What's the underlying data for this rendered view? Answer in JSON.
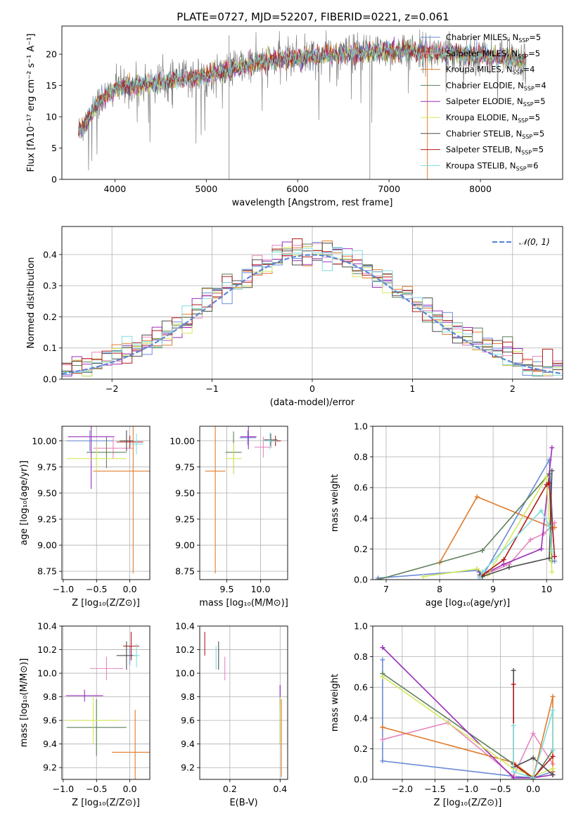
{
  "figure_title": "PLATE=0727, MJD=52207, FIBERID=0221, z=0.061",
  "palette": {
    "ChabrierMILES": "#6b8bd6",
    "SalpeterMILES": "#e687bf",
    "KroupaMILES": "#e07b2c",
    "ChabrierELODIE": "#5e7f5a",
    "SalpeterELODIE": "#9b2fb8",
    "KroupaELODIE": "#d3e85a",
    "ChabrierSTELIB": "#4f4f4f",
    "SalpeterSTELIB": "#b01c1c",
    "KroupaSTELIB": "#82dcdc",
    "data": "#808080",
    "gaussian": "#5b87d6"
  },
  "chart_data": [
    {
      "id": "spectrum",
      "type": "line",
      "title": "PLATE=0727, MJD=52207, FIBERID=0221, z=0.061",
      "xlabel": "wavelength [Angstrom, rest frame]",
      "ylabel": "Flux [fλ10⁻¹⁷ erg cm⁻² s⁻¹ A⁻¹]",
      "xlim": [
        3420,
        8900
      ],
      "ylim": [
        0,
        24.5
      ],
      "xticks": [
        4000,
        5000,
        6000,
        7000,
        8000
      ],
      "yticks": [
        0,
        5,
        10,
        15,
        20
      ],
      "grid": false,
      "legend_position": "top-right",
      "x_range": [
        3600,
        8500
      ],
      "continuum": [
        [
          3600,
          7.5
        ],
        [
          3700,
          9.5
        ],
        [
          3800,
          12
        ],
        [
          4000,
          14.5
        ],
        [
          4200,
          15
        ],
        [
          4500,
          15.5
        ],
        [
          5000,
          16.5
        ],
        [
          5500,
          18.5
        ],
        [
          6000,
          19.5
        ],
        [
          6500,
          20
        ],
        [
          7000,
          20.5
        ],
        [
          7500,
          20.3
        ],
        [
          8000,
          19.8
        ],
        [
          8500,
          19
        ]
      ],
      "series": [
        {
          "name": "Chabrier MILES, N_SSP=5",
          "label_main": "Chabrier MILES, N",
          "label_sub": "SSP",
          "label_tail": "=5",
          "color_key": "ChabrierMILES"
        },
        {
          "name": "Salpeter MILES, N_SSP=5",
          "label_main": "Salpeter MILES, N",
          "label_sub": "SSP",
          "label_tail": "=5",
          "color_key": "SalpeterMILES"
        },
        {
          "name": "Kroupa MILES, N_SSP=4",
          "label_main": "Kroupa MILES, N",
          "label_sub": "SSP",
          "label_tail": "=4",
          "color_key": "KroupaMILES"
        },
        {
          "name": "Chabrier ELODIE, N_SSP=4",
          "label_main": "Chabrier ELODIE, N",
          "label_sub": "SSP",
          "label_tail": "=4",
          "color_key": "ChabrierELODIE"
        },
        {
          "name": "Salpeter ELODIE, N_SSP=5",
          "label_main": "Salpeter ELODIE, N",
          "label_sub": "SSP",
          "label_tail": "=5",
          "color_key": "SalpeterELODIE"
        },
        {
          "name": "Kroupa ELODIE, N_SSP=5",
          "label_main": "Kroupa ELODIE, N",
          "label_sub": "SSP",
          "label_tail": "=5",
          "color_key": "KroupaELODIE"
        },
        {
          "name": "Chabrier STELIB, N_SSP=5",
          "label_main": "Chabrier STELIB, N",
          "label_sub": "SSP",
          "label_tail": "=5",
          "color_key": "ChabrierSTELIB"
        },
        {
          "name": "Salpeter STELIB, N_SSP=5",
          "label_main": "Salpeter STELIB, N",
          "label_sub": "SSP",
          "label_tail": "=5",
          "color_key": "SalpeterSTELIB"
        },
        {
          "name": "Kroupa STELIB, N_SSP=6",
          "label_main": "Kroupa STELIB, N",
          "label_sub": "SSP",
          "label_tail": "=6",
          "color_key": "KroupaSTELIB"
        }
      ]
    },
    {
      "id": "residuals",
      "type": "line",
      "xlabel": "(data-model)/error",
      "ylabel": "Normed distribution",
      "xlim": [
        -2.5,
        2.5
      ],
      "ylim": [
        0,
        0.49
      ],
      "xticks": [
        -2,
        -1,
        0,
        1,
        2
      ],
      "yticks": [
        0.0,
        0.1,
        0.2,
        0.3,
        0.4
      ],
      "grid": true,
      "legend_position": "top-right",
      "gaussian_label": "𝒩(0, 1)",
      "bin_width": 0.1
    },
    {
      "id": "age_vs_Z",
      "type": "scatter",
      "xlabel": "Z [log₁₀(Z/Z⊙)]",
      "ylabel": "age  [log₁₀(age/yr)]",
      "xlim": [
        -1.02,
        0.3
      ],
      "ylim": [
        8.67,
        10.14
      ],
      "xticks": [
        -1.0,
        -0.5,
        0.0
      ],
      "yticks": [
        8.75,
        9.0,
        9.25,
        9.5,
        9.75,
        10.0
      ],
      "grid": true,
      "points": [
        {
          "key": "ChabrierMILES",
          "x": -0.6,
          "xerr": 0.35,
          "y": 10.0,
          "yerr": 0.1
        },
        {
          "key": "SalpeterMILES",
          "x": -0.25,
          "xerr": 0.3,
          "y": 9.93,
          "yerr": 0.1
        },
        {
          "key": "KroupaMILES",
          "x": 0.05,
          "xerr": 0.6,
          "y": 9.71,
          "yerr": 0.98
        },
        {
          "key": "ChabrierELODIE",
          "x": -0.35,
          "xerr": 0.3,
          "y": 9.89,
          "yerr": 0.15
        },
        {
          "key": "SalpeterELODIE",
          "x": -0.58,
          "xerr": 0.35,
          "y": 10.04,
          "yerr": 0.5
        },
        {
          "key": "KroupaELODIE",
          "x": -0.5,
          "xerr": 0.45,
          "y": 9.83,
          "yerr": 0.12
        },
        {
          "key": "ChabrierSTELIB",
          "x": -0.05,
          "xerr": 0.1,
          "y": 10.0,
          "yerr": 0.1
        },
        {
          "key": "SalpeterSTELIB",
          "x": 0.0,
          "xerr": 0.2,
          "y": 9.99,
          "yerr": 0.06
        },
        {
          "key": "KroupaSTELIB",
          "x": 0.1,
          "xerr": 0.1,
          "y": 9.97,
          "yerr": 0.1
        }
      ]
    },
    {
      "id": "age_vs_mass",
      "type": "scatter",
      "xlabel": "mass [log₁₀(M/M⊙)]",
      "xlim": [
        9.1,
        10.4
      ],
      "ylim": [
        8.67,
        10.14
      ],
      "xticks": [
        9.5,
        10.0
      ],
      "yticks": [
        8.75,
        9.0,
        9.25,
        9.5,
        9.75,
        10.0
      ],
      "grid": true,
      "points": [
        {
          "key": "ChabrierMILES",
          "x": 9.81,
          "xerr": 0.12,
          "y": 10.03,
          "yerr": 0.07
        },
        {
          "key": "SalpeterMILES",
          "x": 10.04,
          "xerr": 0.13,
          "y": 9.94,
          "yerr": 0.1
        },
        {
          "key": "KroupaMILES",
          "x": 9.33,
          "xerr": 0.15,
          "y": 9.71,
          "yerr": 0.98
        },
        {
          "key": "ChabrierELODIE",
          "x": 9.6,
          "xerr": 0.12,
          "y": 9.89,
          "yerr": 0.2
        },
        {
          "key": "SalpeterELODIE",
          "x": 9.82,
          "xerr": 0.12,
          "y": 10.04,
          "yerr": 0.12
        },
        {
          "key": "KroupaELODIE",
          "x": 9.6,
          "xerr": 0.12,
          "y": 9.83,
          "yerr": 0.15
        },
        {
          "key": "ChabrierSTELIB",
          "x": 10.15,
          "xerr": 0.1,
          "y": 10.01,
          "yerr": 0.06
        },
        {
          "key": "SalpeterSTELIB",
          "x": 10.22,
          "xerr": 0.08,
          "y": 10.0,
          "yerr": 0.05
        },
        {
          "key": "KroupaSTELIB",
          "x": 10.14,
          "xerr": 0.1,
          "y": 10.0,
          "yerr": 0.08
        }
      ]
    },
    {
      "id": "weight_vs_age",
      "type": "line",
      "xlabel": "age  [log₁₀(age/yr)]",
      "ylabel": "mass weight",
      "xlim": [
        6.75,
        10.3
      ],
      "ylim": [
        0,
        1
      ],
      "xticks": [
        7,
        8,
        9,
        10
      ],
      "yticks": [
        0.0,
        0.2,
        0.4,
        0.6,
        0.8,
        1.0
      ],
      "grid": true,
      "series": [
        {
          "key": "ChabrierMILES",
          "x": [
            6.85,
            8.7,
            8.8,
            10.05,
            10.15
          ],
          "y": [
            0.01,
            0.06,
            0.02,
            0.78,
            0.12
          ]
        },
        {
          "key": "SalpeterMILES",
          "x": [
            8.75,
            9.3,
            9.7,
            9.95,
            10.15
          ],
          "y": [
            0.02,
            0.1,
            0.26,
            0.3,
            0.37
          ]
        },
        {
          "key": "KroupaMILES",
          "x": [
            8.0,
            8.7,
            10.1,
            10.15
          ],
          "y": [
            0.11,
            0.54,
            0.34,
            0.34
          ]
        },
        {
          "key": "ChabrierELODIE",
          "x": [
            6.85,
            8.8,
            10.05,
            10.1
          ],
          "y": [
            0.0,
            0.19,
            0.69,
            0.12
          ]
        },
        {
          "key": "SalpeterELODIE",
          "x": [
            8.7,
            8.8,
            9.2,
            9.9,
            10.1
          ],
          "y": [
            0.07,
            0.03,
            0.1,
            0.2,
            0.86
          ]
        },
        {
          "key": "KroupaELODIE",
          "x": [
            7.7,
            8.7,
            8.9,
            10.0,
            10.1
          ],
          "y": [
            0.02,
            0.07,
            0.03,
            0.67,
            0.05
          ]
        },
        {
          "key": "ChabrierSTELIB",
          "x": [
            8.75,
            8.8,
            9.3,
            10.05,
            10.1
          ],
          "y": [
            0.03,
            0.02,
            0.08,
            0.14,
            0.71
          ]
        },
        {
          "key": "SalpeterSTELIB",
          "x": [
            8.8,
            9.2,
            10.0,
            10.05,
            10.15
          ],
          "y": [
            0.03,
            0.13,
            0.62,
            0.63,
            0.15
          ]
        },
        {
          "key": "KroupaSTELIB",
          "x": [
            8.75,
            8.8,
            9.9,
            10.05,
            10.1
          ],
          "y": [
            0.01,
            0.05,
            0.45,
            0.35,
            0.19
          ]
        }
      ]
    },
    {
      "id": "mass_vs_Z",
      "type": "scatter",
      "xlabel": "Z [log₁₀(Z/Z⊙)]",
      "ylabel": "mass [log₁₀(M/M⊙)]",
      "xlim": [
        -1.02,
        0.3
      ],
      "ylim": [
        9.1,
        10.4
      ],
      "xticks": [
        -1.0,
        -0.5,
        0.0
      ],
      "yticks": [
        9.2,
        9.4,
        9.6,
        9.8,
        10.0,
        10.2,
        10.4
      ],
      "grid": true,
      "points": [
        {
          "key": "ChabrierMILES",
          "x": 0.0,
          "xerr": 0.12,
          "y": 10.15,
          "yerr": 0.08
        },
        {
          "key": "SalpeterMILES",
          "x": -0.35,
          "xerr": 0.25,
          "y": 10.04,
          "yerr": 0.1
        },
        {
          "key": "KroupaMILES",
          "x": 0.08,
          "xerr": 0.35,
          "y": 9.33,
          "yerr": 0.36
        },
        {
          "key": "ChabrierELODIE",
          "x": -0.5,
          "xerr": 0.45,
          "y": 9.54,
          "yerr": 0.24
        },
        {
          "key": "SalpeterELODIE",
          "x": -0.68,
          "xerr": 0.28,
          "y": 9.81,
          "yerr": 0.05
        },
        {
          "key": "KroupaELODIE",
          "x": -0.55,
          "xerr": 0.4,
          "y": 9.6,
          "yerr": 0.2
        },
        {
          "key": "ChabrierSTELIB",
          "x": -0.05,
          "xerr": 0.15,
          "y": 10.15,
          "yerr": 0.12
        },
        {
          "key": "SalpeterSTELIB",
          "x": 0.02,
          "xerr": 0.12,
          "y": 10.23,
          "yerr": 0.12
        },
        {
          "key": "KroupaSTELIB",
          "x": 0.1,
          "xerr": 0.05,
          "y": 10.15,
          "yerr": 0.1
        }
      ]
    },
    {
      "id": "mass_vs_EBV",
      "type": "scatter",
      "xlabel": "E(B-V)",
      "xlim": [
        0.08,
        0.43
      ],
      "ylim": [
        9.1,
        10.4
      ],
      "xticks": [
        0.2,
        0.4
      ],
      "yticks": [
        9.2,
        9.4,
        9.6,
        9.8,
        10.0,
        10.2,
        10.4
      ],
      "grid": true,
      "points": [
        {
          "key": "ChabrierMILES",
          "x": 0.4,
          "y": 9.8,
          "yerr": 0.1
        },
        {
          "key": "SalpeterMILES",
          "x": 0.18,
          "y": 10.04,
          "yerr": 0.1
        },
        {
          "key": "KroupaMILES",
          "x": 0.405,
          "y": 9.45,
          "yerr": 0.33
        },
        {
          "key": "ChabrierELODIE",
          "x": 0.4,
          "y": 9.6,
          "yerr": 0.2
        },
        {
          "key": "SalpeterELODIE",
          "x": 0.4,
          "y": 9.82,
          "yerr": 0.08
        },
        {
          "key": "KroupaELODIE",
          "x": 0.4,
          "y": 9.6,
          "yerr": 0.2
        },
        {
          "key": "ChabrierSTELIB",
          "x": 0.155,
          "y": 10.15,
          "yerr": 0.12
        },
        {
          "key": "SalpeterSTELIB",
          "x": 0.1,
          "y": 10.25,
          "yerr": 0.1
        },
        {
          "key": "KroupaSTELIB",
          "x": 0.145,
          "y": 10.13,
          "yerr": 0.1
        }
      ]
    },
    {
      "id": "weight_vs_Z",
      "type": "line",
      "xlabel": "Z [log₁₀(Z/Z⊙)]",
      "ylabel": "mass weight",
      "xlim": [
        -2.45,
        0.45
      ],
      "ylim": [
        0,
        1
      ],
      "xticks": [
        -2.0,
        -1.5,
        -1.0,
        -0.5,
        0.0
      ],
      "yticks": [
        0.0,
        0.2,
        0.4,
        0.6,
        0.8,
        1.0
      ],
      "grid": true,
      "series": [
        {
          "key": "ChabrierMILES",
          "x": [
            -2.3,
            -2.3,
            -0.3,
            0.0,
            0.3
          ],
          "y": [
            0.78,
            0.12,
            0.02,
            0.01,
            0.05
          ]
        },
        {
          "key": "SalpeterMILES",
          "x": [
            -2.3,
            -1.3,
            -0.3,
            0.0,
            0.3
          ],
          "y": [
            0.26,
            0.37,
            0.02,
            0.3,
            0.1
          ]
        },
        {
          "key": "KroupaMILES",
          "x": [
            -2.3,
            -0.3,
            0.0,
            0.3,
            0.3
          ],
          "y": [
            0.34,
            0.11,
            0.01,
            0.54,
            0.05
          ]
        },
        {
          "key": "ChabrierELODIE",
          "x": [
            -2.3,
            -0.3,
            0.0,
            0.3
          ],
          "y": [
            0.69,
            0.1,
            0.0,
            0.19
          ]
        },
        {
          "key": "SalpeterELODIE",
          "x": [
            -2.3,
            -0.3,
            0.0,
            0.3
          ],
          "y": [
            0.86,
            0.01,
            0.01,
            0.03
          ]
        },
        {
          "key": "KroupaELODIE",
          "x": [
            -2.3,
            -0.3,
            0.0,
            0.3
          ],
          "y": [
            0.67,
            0.07,
            0.02,
            0.07
          ]
        },
        {
          "key": "ChabrierSTELIB",
          "x": [
            -0.3,
            -0.3,
            0.0,
            0.3
          ],
          "y": [
            0.71,
            0.08,
            0.14,
            0.03
          ]
        },
        {
          "key": "SalpeterSTELIB",
          "x": [
            -0.3,
            -0.3,
            0.0,
            0.3
          ],
          "y": [
            0.62,
            0.1,
            0.01,
            0.15
          ]
        },
        {
          "key": "KroupaSTELIB",
          "x": [
            -0.3,
            -0.3,
            0.0,
            0.3,
            0.3
          ],
          "y": [
            0.35,
            0.05,
            0.01,
            0.45,
            0.19
          ]
        }
      ]
    }
  ]
}
